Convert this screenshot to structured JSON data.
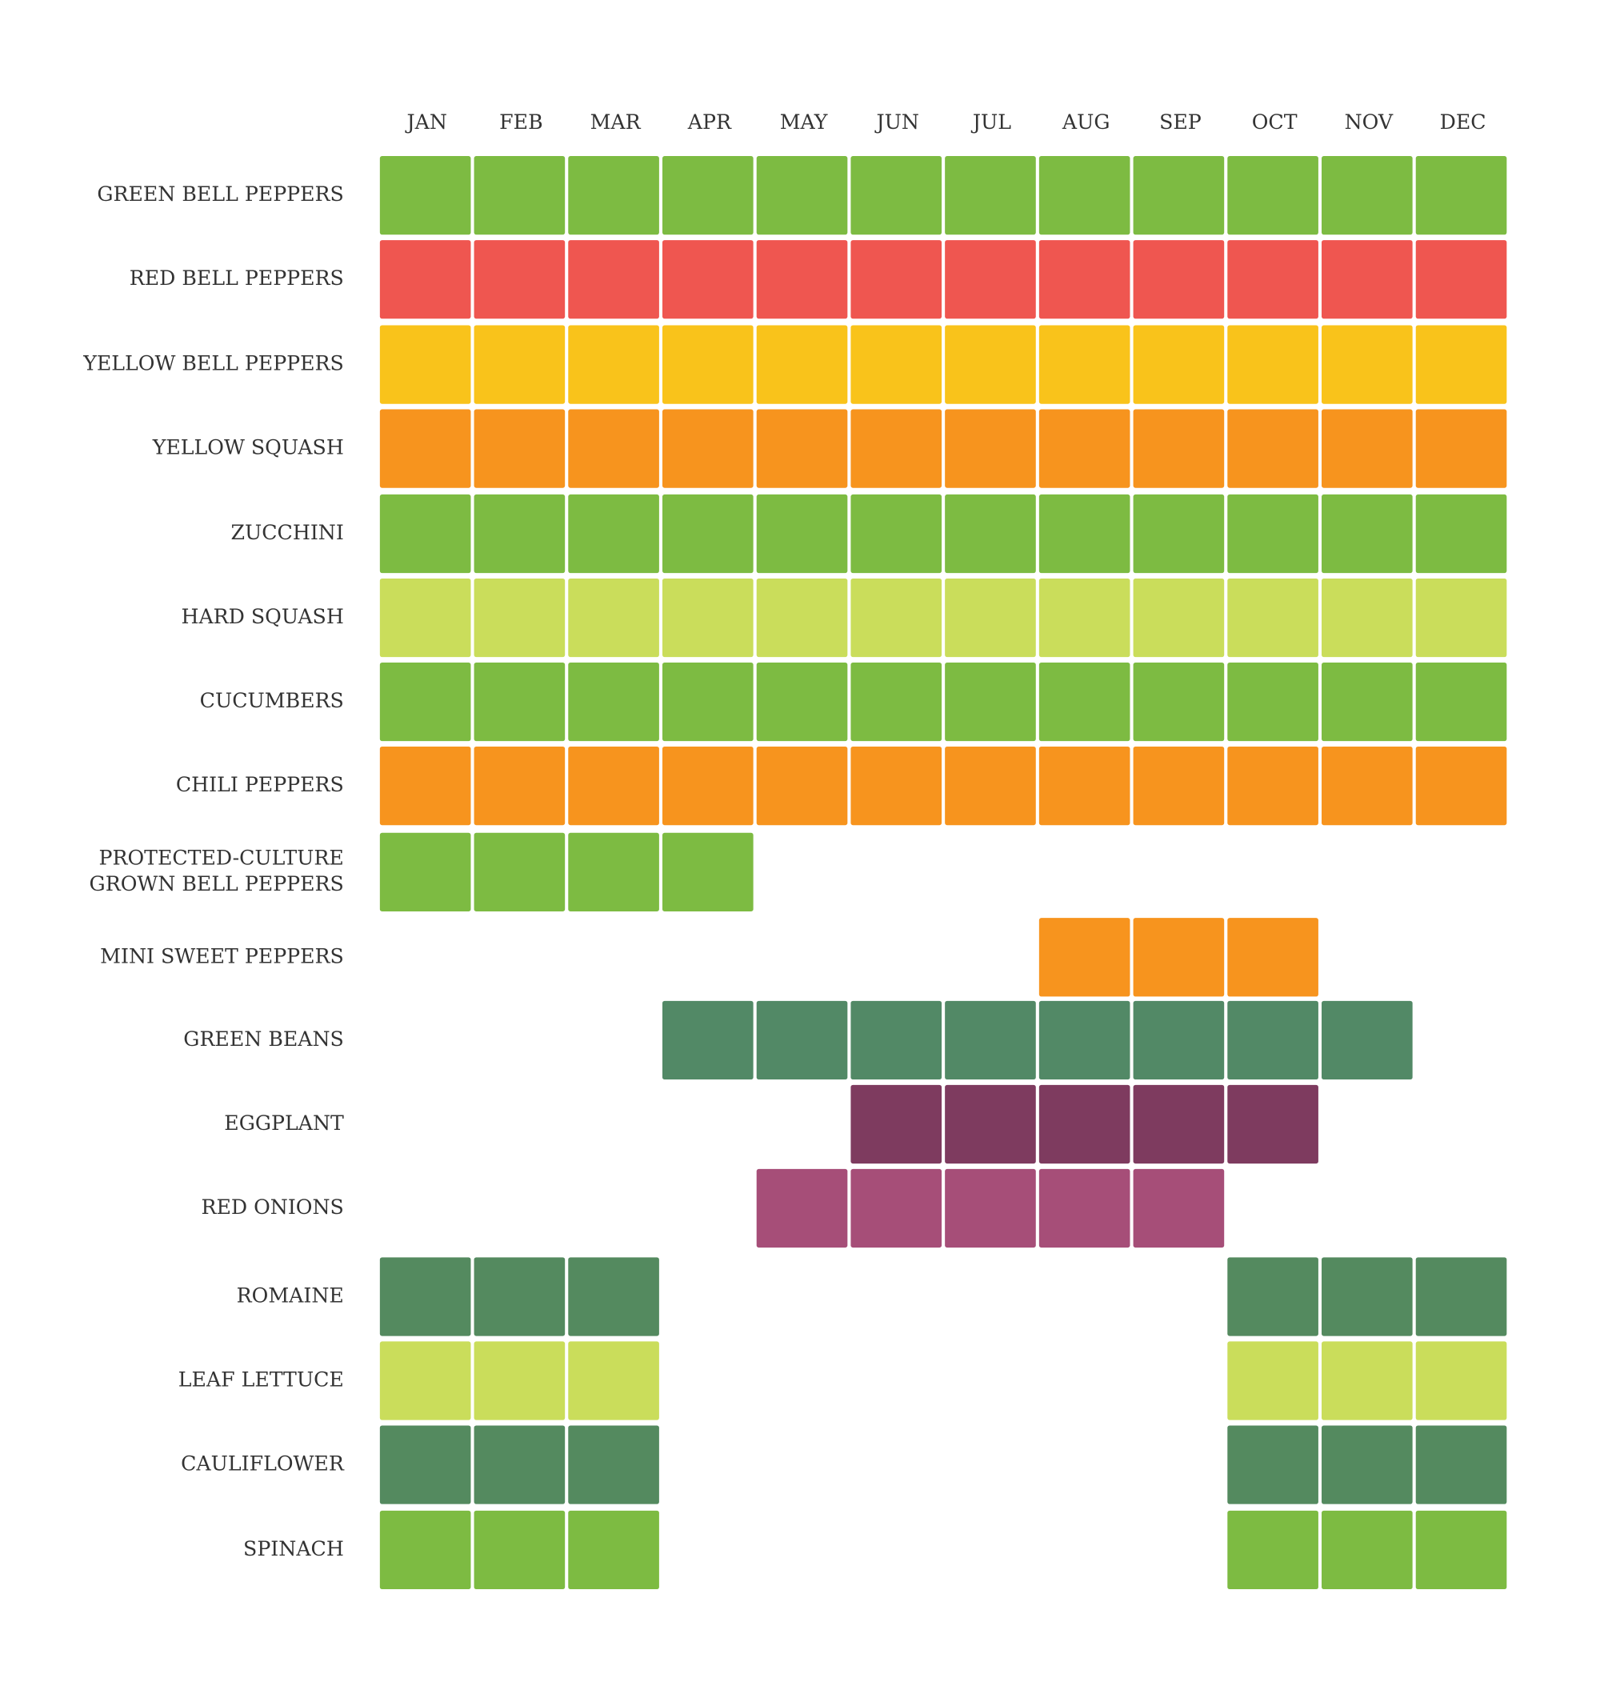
{
  "months": [
    "JAN",
    "FEB",
    "MAR",
    "APR",
    "MAY",
    "JUN",
    "JUL",
    "AUG",
    "SEP",
    "OCT",
    "NOV",
    "DEC"
  ],
  "rows": [
    {
      "label": [
        "GREEN BELL PEPPERS"
      ],
      "color": "#7dbb42",
      "in_season": [
        true,
        true,
        true,
        true,
        true,
        true,
        true,
        true,
        true,
        true,
        true,
        true
      ]
    },
    {
      "label": [
        "RED BELL PEPPERS"
      ],
      "color": "#ef5650",
      "in_season": [
        true,
        true,
        true,
        true,
        true,
        true,
        true,
        true,
        true,
        true,
        true,
        true
      ]
    },
    {
      "label": [
        "YELLOW BELL PEPPERS"
      ],
      "color": "#f9c31b",
      "in_season": [
        true,
        true,
        true,
        true,
        true,
        true,
        true,
        true,
        true,
        true,
        true,
        true
      ]
    },
    {
      "label": [
        "YELLOW SQUASH"
      ],
      "color": "#f7941e",
      "in_season": [
        true,
        true,
        true,
        true,
        true,
        true,
        true,
        true,
        true,
        true,
        true,
        true
      ]
    },
    {
      "label": [
        "ZUCCHINI"
      ],
      "color": "#7dbb42",
      "in_season": [
        true,
        true,
        true,
        true,
        true,
        true,
        true,
        true,
        true,
        true,
        true,
        true
      ]
    },
    {
      "label": [
        "HARD SQUASH"
      ],
      "color": "#cadd5b",
      "in_season": [
        true,
        true,
        true,
        true,
        true,
        true,
        true,
        true,
        true,
        true,
        true,
        true
      ]
    },
    {
      "label": [
        "CUCUMBERS"
      ],
      "color": "#7dbb42",
      "in_season": [
        true,
        true,
        true,
        true,
        true,
        true,
        true,
        true,
        true,
        true,
        true,
        true
      ]
    },
    {
      "label": [
        "CHILI PEPPERS"
      ],
      "color": "#f7941e",
      "in_season": [
        true,
        true,
        true,
        true,
        true,
        true,
        true,
        true,
        true,
        true,
        true,
        true
      ]
    },
    {
      "label": [
        "PROTECTED-CULTURE",
        "GROWN BELL PEPPERS"
      ],
      "color": "#7dbb42",
      "in_season": [
        true,
        true,
        true,
        true,
        false,
        false,
        false,
        false,
        false,
        false,
        false,
        false
      ]
    },
    {
      "label": [
        "MINI SWEET PEPPERS"
      ],
      "color": "#f7941e",
      "in_season": [
        false,
        false,
        false,
        false,
        false,
        false,
        false,
        true,
        true,
        true,
        false,
        false
      ]
    },
    {
      "label": [
        "GREEN BEANS"
      ],
      "color": "#528966",
      "in_season": [
        false,
        false,
        false,
        true,
        true,
        true,
        true,
        true,
        true,
        true,
        true,
        false
      ]
    },
    {
      "label": [
        "EGGPLANT"
      ],
      "color": "#7e3b5f",
      "in_season": [
        false,
        false,
        false,
        false,
        false,
        true,
        true,
        true,
        true,
        true,
        false,
        false
      ]
    },
    {
      "label": [
        "RED ONIONS"
      ],
      "color": "#a64e78",
      "in_season": [
        false,
        false,
        false,
        false,
        true,
        true,
        true,
        true,
        true,
        false,
        false,
        false
      ]
    },
    {
      "label": [
        "ROMAINE"
      ],
      "color": "#548a5f",
      "in_season": [
        true,
        true,
        true,
        false,
        false,
        false,
        false,
        false,
        false,
        true,
        true,
        true
      ]
    },
    {
      "label": [
        "LEAF LETTUCE"
      ],
      "color": "#cadd5b",
      "in_season": [
        true,
        true,
        true,
        false,
        false,
        false,
        false,
        false,
        false,
        true,
        true,
        true
      ]
    },
    {
      "label": [
        "CAULIFLOWER"
      ],
      "color": "#548a5f",
      "in_season": [
        true,
        true,
        true,
        false,
        false,
        false,
        false,
        false,
        false,
        true,
        true,
        true
      ]
    },
    {
      "label": [
        "SPINACH"
      ],
      "color": "#7dbb42",
      "in_season": [
        true,
        true,
        true,
        false,
        false,
        false,
        false,
        false,
        false,
        true,
        true,
        true
      ]
    }
  ]
}
